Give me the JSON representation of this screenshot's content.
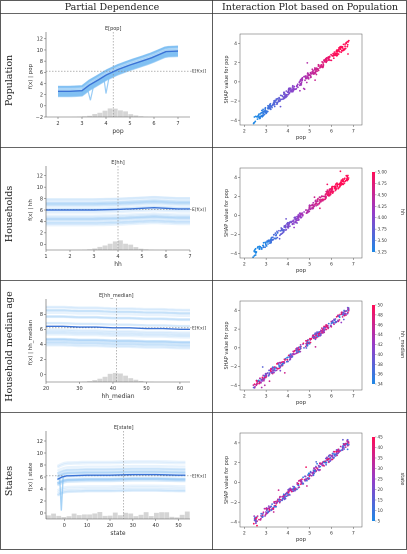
{
  "headers": {
    "left": "Partial Dependence",
    "right": "Interaction Plot based on Population"
  },
  "colors": {
    "pd_line": "#3b73d6",
    "pd_band": "#7fbff2",
    "hist": "#d0d0d0",
    "shap_low": "#1e88e5",
    "shap_high": "#ff0d57"
  },
  "chart_data": [
    {
      "type": "line",
      "row_label": "Population",
      "title": "E[pop]",
      "xlabel": "pop",
      "ylabel": "f(x) | pop",
      "right_label": "E[f(x)]",
      "xlim": [
        1.5,
        7.5
      ],
      "ylim": [
        -2,
        12.5
      ],
      "xticks": [
        "2",
        "3",
        "4",
        "5",
        "6",
        "7"
      ],
      "yticks": [
        "−2",
        "0",
        "2",
        "4",
        "6",
        "8",
        "10",
        "12"
      ],
      "expected_x": 4.3,
      "expected_y": 6.2,
      "series": [
        {
          "x": [
            2.0,
            2.5,
            3.0,
            3.3,
            3.7,
            4.0,
            4.5,
            5.0,
            5.5,
            5.9,
            6.5,
            7.0
          ],
          "values": [
            2.6,
            2.6,
            2.7,
            3.7,
            4.7,
            5.5,
            6.5,
            7.3,
            8.0,
            8.6,
            9.7,
            9.8
          ]
        }
      ]
    },
    {
      "type": "line",
      "row_label": "Households",
      "title": "E[hh]",
      "xlabel": "hh",
      "ylabel": "f(x) | hh",
      "right_label": "E[f(x)]",
      "xlim": [
        1,
        7
      ],
      "ylim": [
        -1,
        13
      ],
      "xticks": [
        "1",
        "2",
        "3",
        "4",
        "5",
        "6",
        "7"
      ],
      "yticks": [
        "0",
        "2",
        "4",
        "6",
        "8",
        "10",
        "12"
      ],
      "expected_x": 4.0,
      "expected_y": 6.1,
      "series": [
        {
          "x": [
            1.0,
            2.0,
            3.0,
            4.0,
            4.5,
            5.0,
            5.5,
            6.0,
            6.5,
            7.0
          ],
          "values": [
            6.0,
            6.0,
            6.0,
            6.1,
            6.2,
            6.3,
            6.4,
            6.3,
            6.2,
            6.2
          ]
        }
      ]
    },
    {
      "type": "line",
      "row_label": "Household median age",
      "title": "E[hh_median]",
      "xlabel": "hh_median",
      "ylabel": "f(x) | hh_median",
      "right_label": "E[f(x)]",
      "xlim": [
        20,
        63
      ],
      "ylim": [
        -1,
        9.5
      ],
      "xticks": [
        "20",
        "30",
        "40",
        "50",
        "60"
      ],
      "yticks": [
        "0",
        "2",
        "4",
        "6",
        "8"
      ],
      "expected_x": 41,
      "expected_y": 6.2,
      "series": [
        {
          "x": [
            20,
            25,
            30,
            35,
            40,
            45,
            50,
            55,
            60,
            63
          ],
          "values": [
            6.4,
            6.4,
            6.3,
            6.3,
            6.2,
            6.2,
            6.1,
            6.1,
            6.0,
            6.0
          ]
        }
      ]
    },
    {
      "type": "line",
      "row_label": "States",
      "title": "E[state]",
      "xlabel": "state",
      "ylabel": "f(x) | state",
      "right_label": "E[f(x)]",
      "xlim": [
        -8,
        55
      ],
      "ylim": [
        -1,
        13
      ],
      "xticks": [
        "0",
        "10",
        "20",
        "30",
        "40",
        "50"
      ],
      "yticks": [
        "0",
        "2",
        "4",
        "6",
        "8",
        "10",
        "12"
      ],
      "expected_x": 26,
      "expected_y": 6.2,
      "series": [
        {
          "x": [
            -3,
            -1,
            0,
            1,
            2,
            10,
            20,
            30,
            40,
            50,
            53
          ],
          "values": [
            5.6,
            6.0,
            6.1,
            6.2,
            6.2,
            6.3,
            6.3,
            6.4,
            6.4,
            6.3,
            6.3
          ]
        }
      ]
    },
    {
      "type": "scatter",
      "xlabel": "pop",
      "ylabel": "SHAP value for pop",
      "xlim": [
        1.8,
        7.4
      ],
      "ylim": [
        -4.5,
        5
      ],
      "xticks": [
        "2",
        "3",
        "4",
        "5",
        "6",
        "7"
      ],
      "yticks": [
        "−4",
        "−2",
        "0",
        "2",
        "4"
      ],
      "colorbar_label": "",
      "colorbar_ticks": []
    },
    {
      "type": "scatter",
      "xlabel": "pop",
      "ylabel": "SHAP value for pop",
      "xlim": [
        1.8,
        7.4
      ],
      "ylim": [
        -4.5,
        5
      ],
      "xticks": [
        "2",
        "3",
        "4",
        "5",
        "6",
        "7"
      ],
      "yticks": [
        "−4",
        "−2",
        "0",
        "2",
        "4"
      ],
      "colorbar_label": "hh",
      "colorbar_ticks": [
        "5.00",
        "4.75",
        "4.50",
        "4.25",
        "4.00",
        "3.75",
        "3.50",
        "3.25"
      ]
    },
    {
      "type": "scatter",
      "xlabel": "pop",
      "ylabel": "SHAP value for pop",
      "xlim": [
        1.8,
        7.4
      ],
      "ylim": [
        -4.5,
        5
      ],
      "xticks": [
        "2",
        "3",
        "4",
        "5",
        "6",
        "7"
      ],
      "yticks": [
        "−4",
        "−2",
        "0",
        "2",
        "4"
      ],
      "colorbar_label": "hh_median",
      "colorbar_ticks": [
        "50",
        "48",
        "46",
        "44",
        "42",
        "40",
        "38",
        "36",
        "34"
      ]
    },
    {
      "type": "scatter",
      "xlabel": "pop",
      "ylabel": "SHAP value for pop",
      "xlim": [
        1.8,
        7.4
      ],
      "ylim": [
        -4.5,
        5
      ],
      "xticks": [
        "2",
        "3",
        "4",
        "5",
        "6",
        "7"
      ],
      "yticks": [
        "−4",
        "−2",
        "0",
        "2",
        "4"
      ],
      "colorbar_label": "state",
      "colorbar_ticks": [
        "45",
        "40",
        "35",
        "30",
        "25",
        "20",
        "15",
        "10",
        "5"
      ]
    }
  ]
}
